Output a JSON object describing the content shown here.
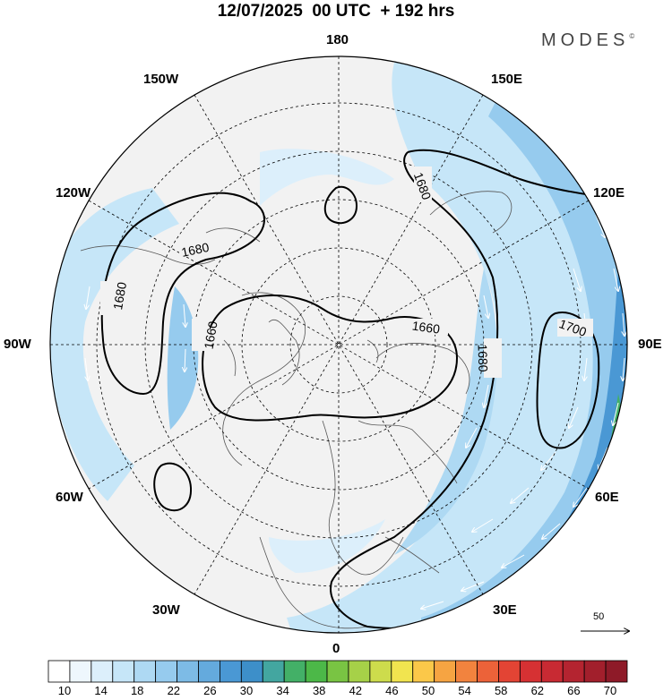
{
  "title": "12/07/2025  00 UTC  + 192 hrs",
  "brand": "MODES",
  "brand_mark": "©",
  "longitude_labels": {
    "l180": "180",
    "l150w": "150W",
    "l150e": "150E",
    "l120w": "120W",
    "l120e": "120E",
    "l90w": "90W",
    "l90e": "90E",
    "l60w": "60W",
    "l60e": "60E",
    "l30w": "30W",
    "l30e": "30E",
    "l0": "0"
  },
  "contour_labels": {
    "c1680_left": "1680",
    "c1680_nw": "1680",
    "c1680_top": "1680",
    "c1660_inner": "1660",
    "c1660_right": "1660",
    "c1680_right": "1680",
    "c1700": "1700"
  },
  "wind_reference": {
    "value": "50"
  },
  "colorbar": {
    "tick_labels": [
      "10",
      "14",
      "18",
      "22",
      "26",
      "30",
      "34",
      "38",
      "42",
      "46",
      "50",
      "54",
      "58",
      "62",
      "66",
      "70"
    ],
    "colors": [
      "#ffffff",
      "#eef7fd",
      "#dcefFB",
      "#c6e6f8",
      "#aed9f3",
      "#96cbee",
      "#7dbbe6",
      "#64aadd",
      "#4a98d4",
      "#3d8fc9",
      "#43a6a0",
      "#43b067",
      "#4cb848",
      "#79c443",
      "#a6d148",
      "#cddc4c",
      "#f1e44f",
      "#fbc849",
      "#f6a442",
      "#f2833e",
      "#ec6239",
      "#e34434",
      "#d63133",
      "#c82a33",
      "#b42430",
      "#a21f2c",
      "#8e1a28"
    ]
  },
  "colors": {
    "land": "#f2f2f2",
    "jet_light": "#c6e6f8",
    "jet_mid": "#96cbee",
    "jet_strong": "#4a98d4",
    "jet_max": "#43b067"
  }
}
